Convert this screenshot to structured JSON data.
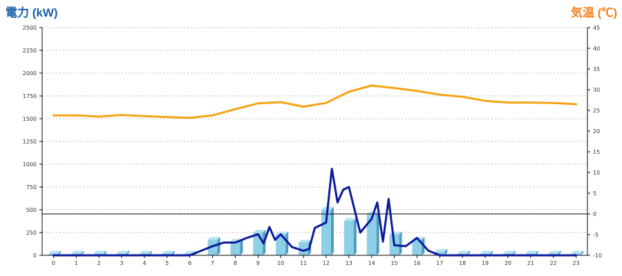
{
  "chart_data": {
    "type": "bar",
    "title": "",
    "left_axis": {
      "title": "電力 (kW)",
      "color": "#1a5fa8",
      "range": [
        0,
        2500
      ],
      "ticks": [
        0,
        250,
        500,
        750,
        1000,
        1250,
        1500,
        1750,
        2000,
        2250,
        2500
      ]
    },
    "right_axis": {
      "title": "気温 (℃)",
      "color": "#f0821e",
      "range": [
        -10,
        45
      ],
      "ticks": [
        -10,
        -5,
        0,
        5,
        10,
        15,
        20,
        25,
        30,
        35,
        40,
        45
      ]
    },
    "categories": [
      "0",
      "1",
      "2",
      "3",
      "4",
      "5",
      "6",
      "7",
      "8",
      "9",
      "10",
      "11",
      "12",
      "13",
      "14",
      "15",
      "16",
      "17",
      "18",
      "19",
      "20",
      "21",
      "22",
      "23"
    ],
    "grid": true,
    "reference_line": {
      "axis": "right",
      "value": 0,
      "color": "#000000"
    },
    "series": [
      {
        "kind": "bar3d",
        "axis": "left",
        "color": "#8ecfe8",
        "values": [
          20,
          20,
          20,
          20,
          20,
          20,
          20,
          170,
          150,
          250,
          230,
          140,
          500,
          380,
          450,
          230,
          170,
          40,
          20,
          20,
          20,
          20,
          20,
          20
        ]
      },
      {
        "kind": "line",
        "axis": "left",
        "color": "#0a1a9a",
        "x": [
          0,
          1,
          2,
          3,
          4,
          5,
          6,
          6.5,
          7,
          7.5,
          8,
          8.5,
          9,
          9.25,
          9.5,
          9.75,
          10,
          10.5,
          11,
          11.25,
          11.5,
          12,
          12.25,
          12.5,
          12.75,
          13,
          13.5,
          14,
          14.25,
          14.5,
          14.75,
          15,
          15.5,
          16,
          16.5,
          17,
          18,
          19,
          20,
          21,
          22,
          23
        ],
        "values": [
          0,
          0,
          0,
          0,
          0,
          0,
          0,
          50,
          100,
          140,
          140,
          190,
          230,
          130,
          310,
          170,
          230,
          90,
          50,
          70,
          300,
          360,
          950,
          580,
          720,
          750,
          250,
          400,
          580,
          150,
          620,
          110,
          100,
          190,
          50,
          0,
          0,
          0,
          0,
          0,
          0,
          0
        ]
      },
      {
        "kind": "line",
        "axis": "right",
        "color": "#f5a313",
        "values": [
          23.8,
          23.8,
          23.5,
          23.9,
          23.6,
          23.4,
          23.2,
          23.8,
          25.3,
          26.7,
          27.0,
          25.9,
          26.8,
          29.5,
          31.0,
          30.4,
          29.7,
          28.8,
          28.3,
          27.3,
          26.9,
          26.9,
          26.8,
          26.5
        ]
      }
    ]
  }
}
